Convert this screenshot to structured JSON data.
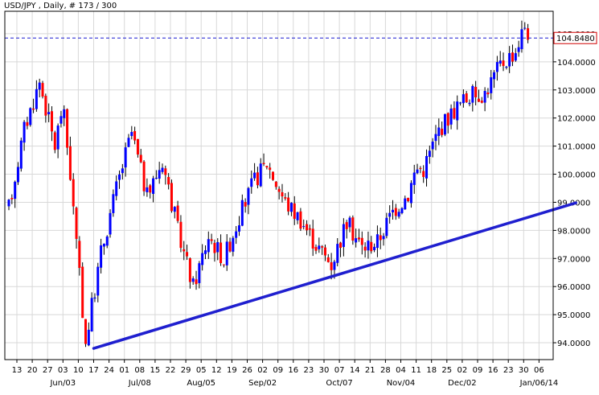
{
  "window": {
    "symbol_title": "USD/JPY , Daily, # 173 / 300"
  },
  "colors": {
    "background": "#ffffff",
    "grid": "#d8d8d8",
    "frame": "#000000",
    "bull": "#0000ff",
    "bear": "#ff0000",
    "wick": "#000000",
    "trendline": "#1f1fcf",
    "price_line": "#1a1ad0",
    "price_label_border": "#d00000"
  },
  "chart_data": {
    "type": "candlestick",
    "title": "USD/JPY , Daily, # 173 / 300",
    "ylim": [
      93.4,
      105.8
    ],
    "grid": true,
    "y_ticks": [
      "94.0000",
      "95.0000",
      "96.0000",
      "97.0000",
      "98.0000",
      "99.0000",
      "100.0000",
      "101.0000",
      "102.0000",
      "103.0000",
      "104.0000",
      "105.0000"
    ],
    "current_price": "104.8480",
    "x_day_labels": [
      "13",
      "20",
      "27",
      "03",
      "10",
      "17",
      "24",
      "01",
      "08",
      "15",
      "22",
      "29",
      "05",
      "12",
      "19",
      "26",
      "02",
      "09",
      "16",
      "23",
      "30",
      "07",
      "14",
      "21",
      "28",
      "04",
      "11",
      "18",
      "25",
      "02",
      "09",
      "16",
      "23",
      "30",
      "06"
    ],
    "x_month_labels": [
      {
        "label": "Jun/03",
        "day_index": 3
      },
      {
        "label": "Jul/08",
        "day_index": 8
      },
      {
        "label": "Aug/05",
        "day_index": 12
      },
      {
        "label": "Sep/02",
        "day_index": 16
      },
      {
        "label": "Oct/07",
        "day_index": 21
      },
      {
        "label": "Nov/04",
        "day_index": 25
      },
      {
        "label": "Dec/02",
        "day_index": 29
      },
      {
        "label": "Jan/06/14",
        "day_index": 34
      }
    ],
    "trendline": {
      "from": {
        "day_index": 5,
        "price": 93.8
      },
      "to": {
        "day_index": 36.4,
        "price": 98.98
      }
    },
    "price_anchors": [
      [
        0,
        98.8
      ],
      [
        1,
        101.6
      ],
      [
        2,
        103.3
      ],
      [
        3,
        101.0
      ],
      [
        3.5,
        102.5
      ],
      [
        4,
        100.0
      ],
      [
        4.4,
        97.5
      ],
      [
        5,
        94.0
      ],
      [
        6,
        97.2
      ],
      [
        7,
        99.5
      ],
      [
        8,
        101.5
      ],
      [
        9,
        99.2
      ],
      [
        10,
        100.5
      ],
      [
        11,
        98.0
      ],
      [
        12,
        96.0
      ],
      [
        13,
        97.8
      ],
      [
        14,
        97.0
      ],
      [
        15,
        98.5
      ],
      [
        16,
        99.8
      ],
      [
        16.8,
        100.4
      ],
      [
        18,
        99.0
      ],
      [
        19,
        98.4
      ],
      [
        20,
        97.5
      ],
      [
        21,
        96.8
      ],
      [
        22,
        98.3
      ],
      [
        23,
        97.4
      ],
      [
        24,
        97.6
      ],
      [
        25,
        98.7
      ],
      [
        26,
        99.3
      ],
      [
        26.5,
        100.2
      ],
      [
        27,
        100.2
      ],
      [
        28,
        101.6
      ],
      [
        29,
        102.3
      ],
      [
        30,
        102.8
      ],
      [
        31,
        102.9
      ],
      [
        32,
        103.9
      ],
      [
        33,
        104.4
      ],
      [
        33.6,
        105.3
      ],
      [
        34,
        104.8
      ]
    ]
  }
}
